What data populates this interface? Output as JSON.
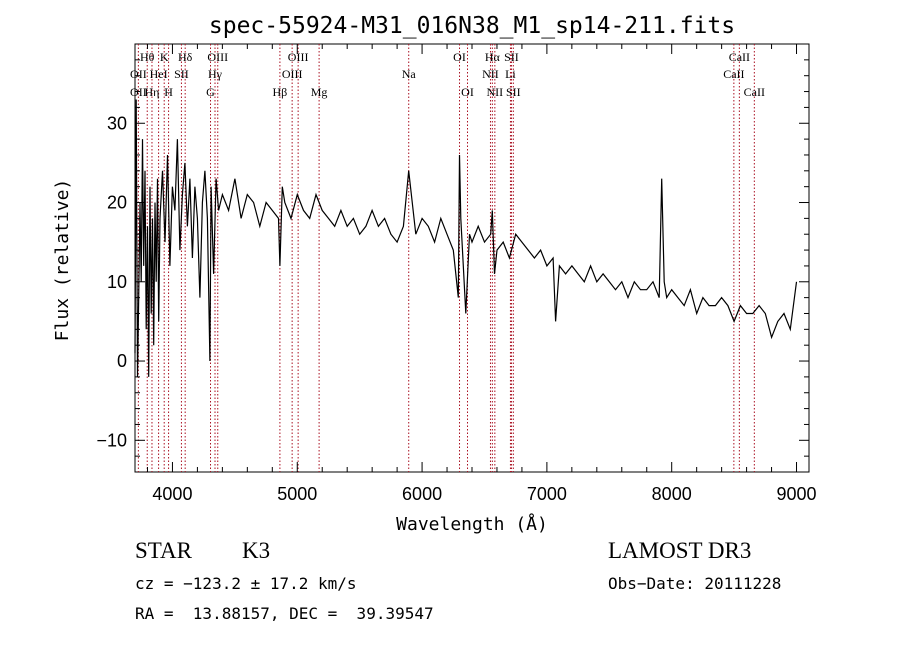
{
  "chart_data": {
    "type": "line",
    "title": "spec-55924-M31_016N38_M1_sp14-211.fits",
    "xlabel": "Wavelength (Å)",
    "ylabel": "Flux (relative)",
    "xlim": [
      3700,
      9100
    ],
    "ylim": [
      -14,
      40
    ],
    "x_ticks": [
      4000,
      5000,
      6000,
      7000,
      8000,
      9000
    ],
    "y_ticks": [
      -10,
      0,
      10,
      20,
      30
    ],
    "series": [
      {
        "name": "flux",
        "x": [
          3700,
          3710,
          3720,
          3730,
          3740,
          3750,
          3760,
          3770,
          3780,
          3790,
          3800,
          3810,
          3820,
          3830,
          3840,
          3850,
          3860,
          3870,
          3880,
          3890,
          3900,
          3920,
          3940,
          3960,
          3980,
          4000,
          4020,
          4040,
          4060,
          4080,
          4100,
          4120,
          4140,
          4160,
          4180,
          4200,
          4220,
          4240,
          4260,
          4280,
          4300,
          4310,
          4330,
          4350,
          4370,
          4400,
          4450,
          4500,
          4550,
          4600,
          4650,
          4700,
          4750,
          4800,
          4850,
          4861,
          4880,
          4900,
          4950,
          5000,
          5050,
          5100,
          5150,
          5200,
          5250,
          5300,
          5350,
          5400,
          5450,
          5500,
          5550,
          5600,
          5650,
          5700,
          5750,
          5800,
          5850,
          5893,
          5950,
          6000,
          6050,
          6100,
          6150,
          6200,
          6250,
          6290,
          6300,
          6310,
          6330,
          6350,
          6380,
          6400,
          6450,
          6500,
          6550,
          6563,
          6580,
          6600,
          6650,
          6700,
          6750,
          6800,
          6850,
          6900,
          6950,
          7000,
          7050,
          7070,
          7100,
          7150,
          7200,
          7250,
          7300,
          7350,
          7400,
          7450,
          7500,
          7550,
          7600,
          7650,
          7700,
          7750,
          7800,
          7850,
          7900,
          7920,
          7940,
          7960,
          8000,
          8050,
          8100,
          8150,
          8200,
          8250,
          8300,
          8350,
          8400,
          8450,
          8500,
          8550,
          8600,
          8650,
          8700,
          8750,
          8800,
          8850,
          8900,
          8950,
          9000
        ],
        "values": [
          1,
          33,
          -2,
          8,
          20,
          10,
          28,
          12,
          24,
          4,
          17,
          -2,
          22,
          6,
          18,
          2,
          20,
          10,
          23,
          5,
          18,
          24,
          15,
          26,
          12,
          22,
          19,
          28,
          14,
          21,
          25,
          17,
          23,
          13,
          22,
          18,
          8,
          20,
          24,
          18,
          0,
          22,
          11,
          23,
          19,
          21,
          19,
          23,
          18,
          21,
          20,
          17,
          20,
          19,
          18,
          12,
          22,
          20,
          18,
          21,
          19,
          18,
          21,
          19,
          18,
          17,
          19,
          17,
          18,
          16,
          17,
          19,
          17,
          18,
          16,
          15,
          17,
          24,
          16,
          18,
          17,
          15,
          18,
          16,
          14,
          8,
          26,
          18,
          12,
          6,
          16,
          15,
          17,
          15,
          16,
          19,
          11,
          14,
          15,
          13,
          16,
          15,
          14,
          13,
          14,
          12,
          13,
          5,
          12,
          11,
          12,
          11,
          10,
          12,
          10,
          11,
          10,
          9,
          10,
          8,
          10,
          9,
          9,
          10,
          8,
          23,
          10,
          8,
          9,
          8,
          7,
          9,
          6,
          8,
          7,
          7,
          8,
          7,
          5,
          7,
          6,
          6,
          7,
          6,
          3,
          5,
          6,
          4,
          10
        ]
      }
    ],
    "lines": [
      {
        "label": "Hθ",
        "wave": 3798,
        "row": 1
      },
      {
        "label": "OII",
        "wave": 3727,
        "row": 2
      },
      {
        "label": "Hη",
        "wave": 3836,
        "row": 3
      },
      {
        "label": "OII",
        "wave": 3727,
        "row": 3
      },
      {
        "label": "K",
        "wave": 3934,
        "row": 1
      },
      {
        "label": "HeI",
        "wave": 3889,
        "row": 2
      },
      {
        "label": "H",
        "wave": 3969,
        "row": 3
      },
      {
        "label": "Hδ",
        "wave": 4102,
        "row": 1
      },
      {
        "label": "SII",
        "wave": 4072,
        "row": 2
      },
      {
        "label": "OIII",
        "wave": 4363,
        "row": 1
      },
      {
        "label": "Hγ",
        "wave": 4341,
        "row": 2
      },
      {
        "label": "G",
        "wave": 4305,
        "row": 3
      },
      {
        "label": "Hβ",
        "wave": 4861,
        "row": 3
      },
      {
        "label": "OIII",
        "wave": 5007,
        "row": 1
      },
      {
        "label": "OIII",
        "wave": 4959,
        "row": 2
      },
      {
        "label": "Mg",
        "wave": 5175,
        "row": 3
      },
      {
        "label": "Na",
        "wave": 5893,
        "row": 2
      },
      {
        "label": "OI",
        "wave": 6300,
        "row": 1
      },
      {
        "label": "OI",
        "wave": 6364,
        "row": 3
      },
      {
        "label": "Hα",
        "wave": 6563,
        "row": 1
      },
      {
        "label": "NII",
        "wave": 6548,
        "row": 2
      },
      {
        "label": "NII",
        "wave": 6583,
        "row": 3
      },
      {
        "label": "SII",
        "wave": 6716,
        "row": 1
      },
      {
        "label": "Li",
        "wave": 6708,
        "row": 2
      },
      {
        "label": "SII",
        "wave": 6731,
        "row": 3
      },
      {
        "label": "CaII",
        "wave": 8542,
        "row": 1
      },
      {
        "label": "CaII",
        "wave": 8498,
        "row": 2
      },
      {
        "label": "CaII",
        "wave": 8662,
        "row": 3
      }
    ],
    "grid": false
  },
  "info": {
    "class": "STAR",
    "subclass": "K3",
    "survey": "LAMOST DR3",
    "cz": "cz = −123.2 ± 17.2 km/s",
    "obs_date": "Obs−Date: 20111228",
    "coords": "RA =  13.88157, DEC =  39.39547"
  },
  "colors": {
    "axes": "#000000",
    "spectrum": "#000000",
    "line_markers": "#aa1122"
  }
}
